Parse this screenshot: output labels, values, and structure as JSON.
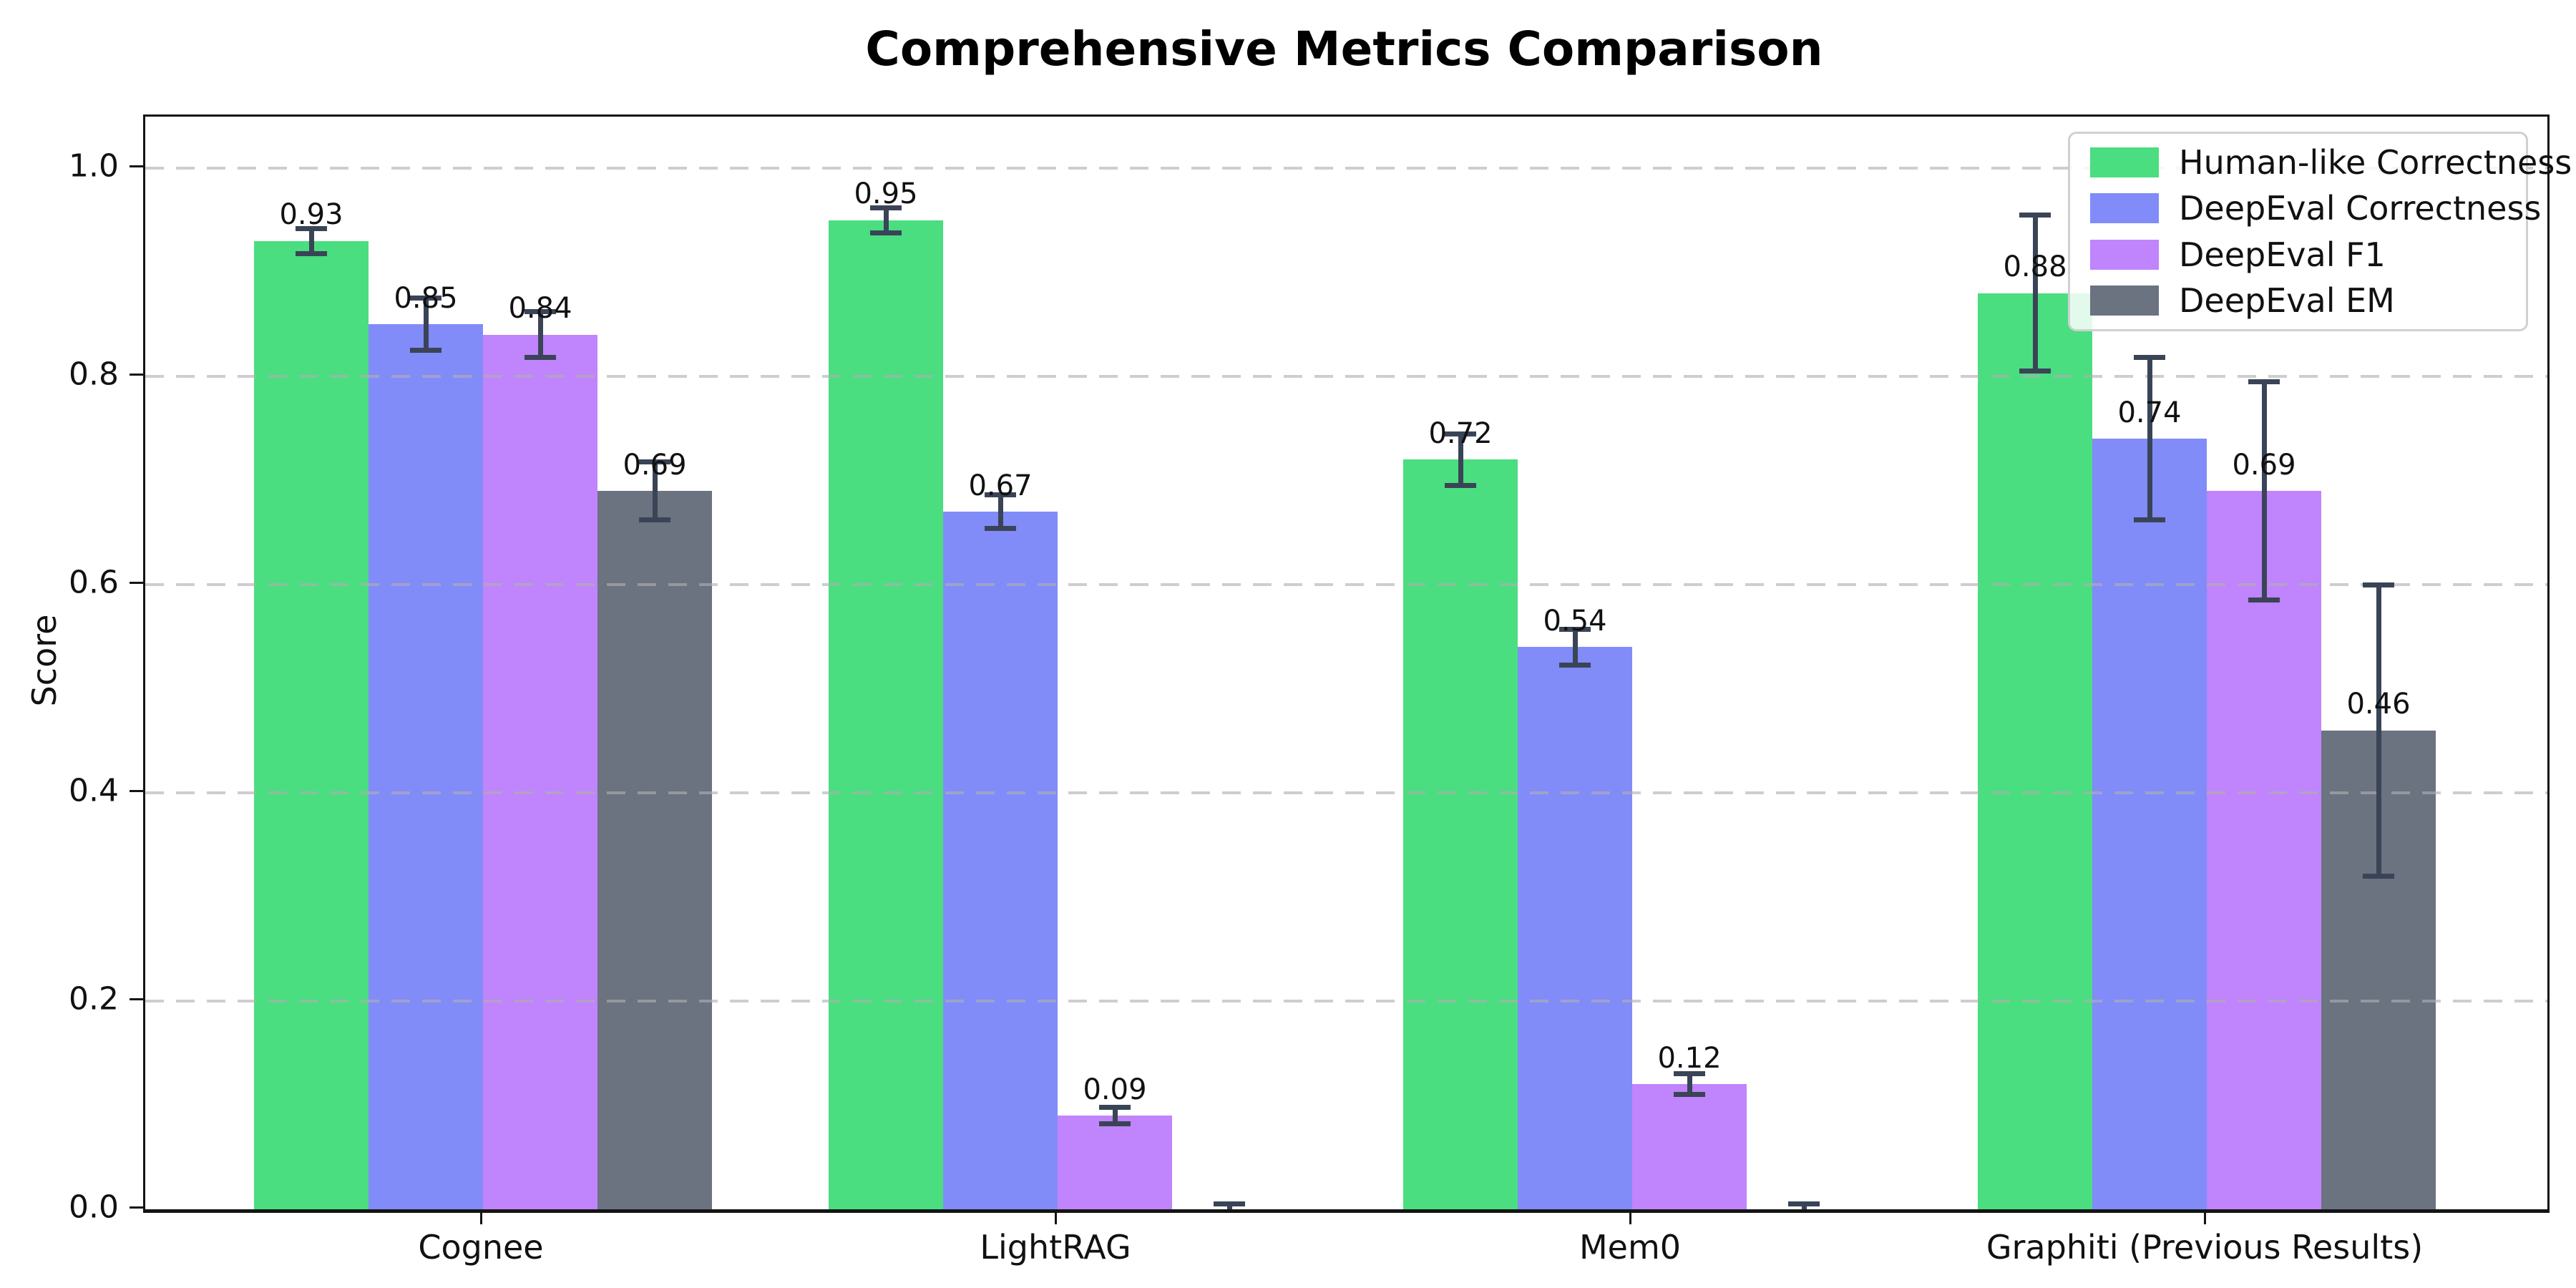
{
  "title": "Comprehensive Metrics Comparison",
  "chart_data": {
    "type": "bar",
    "title": "Comprehensive Metrics Comparison",
    "categories": [
      "Cognee",
      "LightRAG",
      "Mem0",
      "Graphiti (Previous Results)"
    ],
    "series": [
      {
        "name": "Human-like Correctness",
        "color": "#4ade80",
        "values": [
          0.93,
          0.95,
          0.72,
          0.88
        ],
        "errors": [
          0.012,
          0.012,
          0.025,
          0.075
        ]
      },
      {
        "name": "DeepEval Correctness",
        "color": "#818cf8",
        "values": [
          0.85,
          0.67,
          0.54,
          0.74
        ],
        "errors": [
          0.025,
          0.016,
          0.017,
          0.078
        ]
      },
      {
        "name": "DeepEval F1",
        "color": "#c084fc",
        "values": [
          0.84,
          0.09,
          0.12,
          0.69
        ],
        "errors": [
          0.022,
          0.008,
          0.01,
          0.105
        ]
      },
      {
        "name": "DeepEval EM",
        "color": "#6b7280",
        "values": [
          0.69,
          0.0,
          0.0,
          0.46
        ],
        "errors": [
          0.028,
          0.005,
          0.005,
          0.14
        ]
      }
    ],
    "xlabel": "",
    "ylabel": "Score",
    "yticks": [
      "0.0",
      "0.2",
      "0.4",
      "0.6",
      "0.8",
      "1.0"
    ],
    "ylim": [
      0,
      1.05
    ],
    "grid": "horizontal dashed, drawn over bars",
    "legend_position": "upper right",
    "bar_label_format": "2 decimals, zero-value bars unlabeled",
    "error_bar_color": "#3a4457",
    "background_color": "#ffffff"
  }
}
